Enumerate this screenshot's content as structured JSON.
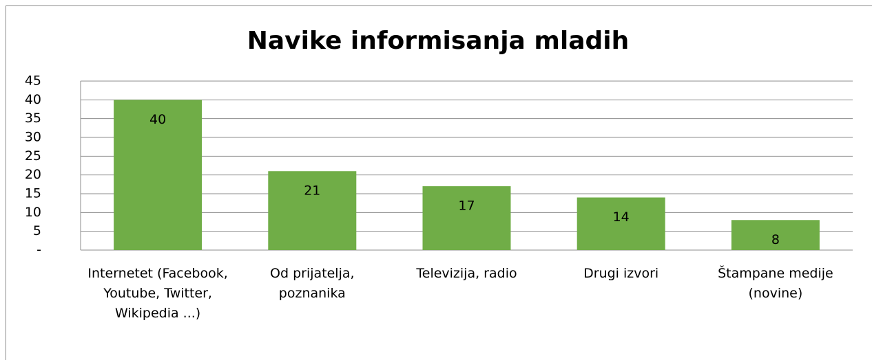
{
  "chart_data": {
    "type": "bar",
    "title": "Navike informisanja mladih",
    "categories": [
      "Internetet (Facebook, Youtube, Twitter, Wikipedia ...)",
      "Od prijatelja, poznanika",
      "Televizija, radio",
      "Drugi izvori",
      "Štampane medije (novine)"
    ],
    "values": [
      40,
      21,
      17,
      14,
      8
    ],
    "color": "#70ad47",
    "ylim": [
      0,
      45
    ],
    "yticks": [
      {
        "value": 0,
        "label": "-"
      },
      5,
      10,
      15,
      20,
      25,
      30,
      35,
      40,
      45
    ],
    "grid": true
  }
}
